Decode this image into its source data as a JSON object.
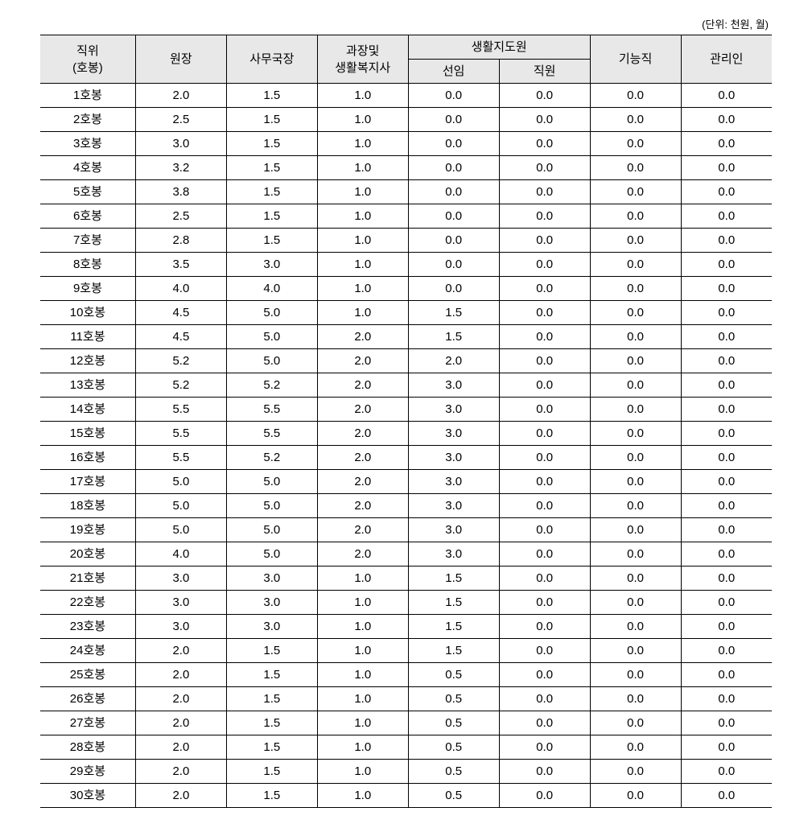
{
  "unit_label": "(단위: 천원, 월)",
  "table": {
    "type": "table",
    "header": {
      "col1_line1": "직위",
      "col1_line2": "(호봉)",
      "col2": "원장",
      "col3": "사무국장",
      "col4_line1": "과장및",
      "col4_line2": "생활복지사",
      "col5_group": "생활지도원",
      "col5a": "선임",
      "col5b": "직원",
      "col6": "기능직",
      "col7": "관리인"
    },
    "rows": [
      {
        "label": "1호봉",
        "c1": "2.0",
        "c2": "1.5",
        "c3": "1.0",
        "c4": "0.0",
        "c5": "0.0",
        "c6": "0.0",
        "c7": "0.0"
      },
      {
        "label": "2호봉",
        "c1": "2.5",
        "c2": "1.5",
        "c3": "1.0",
        "c4": "0.0",
        "c5": "0.0",
        "c6": "0.0",
        "c7": "0.0"
      },
      {
        "label": "3호봉",
        "c1": "3.0",
        "c2": "1.5",
        "c3": "1.0",
        "c4": "0.0",
        "c5": "0.0",
        "c6": "0.0",
        "c7": "0.0"
      },
      {
        "label": "4호봉",
        "c1": "3.2",
        "c2": "1.5",
        "c3": "1.0",
        "c4": "0.0",
        "c5": "0.0",
        "c6": "0.0",
        "c7": "0.0"
      },
      {
        "label": "5호봉",
        "c1": "3.8",
        "c2": "1.5",
        "c3": "1.0",
        "c4": "0.0",
        "c5": "0.0",
        "c6": "0.0",
        "c7": "0.0"
      },
      {
        "label": "6호봉",
        "c1": "2.5",
        "c2": "1.5",
        "c3": "1.0",
        "c4": "0.0",
        "c5": "0.0",
        "c6": "0.0",
        "c7": "0.0"
      },
      {
        "label": "7호봉",
        "c1": "2.8",
        "c2": "1.5",
        "c3": "1.0",
        "c4": "0.0",
        "c5": "0.0",
        "c6": "0.0",
        "c7": "0.0"
      },
      {
        "label": "8호봉",
        "c1": "3.5",
        "c2": "3.0",
        "c3": "1.0",
        "c4": "0.0",
        "c5": "0.0",
        "c6": "0.0",
        "c7": "0.0"
      },
      {
        "label": "9호봉",
        "c1": "4.0",
        "c2": "4.0",
        "c3": "1.0",
        "c4": "0.0",
        "c5": "0.0",
        "c6": "0.0",
        "c7": "0.0"
      },
      {
        "label": "10호봉",
        "c1": "4.5",
        "c2": "5.0",
        "c3": "1.0",
        "c4": "1.5",
        "c5": "0.0",
        "c6": "0.0",
        "c7": "0.0"
      },
      {
        "label": "11호봉",
        "c1": "4.5",
        "c2": "5.0",
        "c3": "2.0",
        "c4": "1.5",
        "c5": "0.0",
        "c6": "0.0",
        "c7": "0.0"
      },
      {
        "label": "12호봉",
        "c1": "5.2",
        "c2": "5.0",
        "c3": "2.0",
        "c4": "2.0",
        "c5": "0.0",
        "c6": "0.0",
        "c7": "0.0"
      },
      {
        "label": "13호봉",
        "c1": "5.2",
        "c2": "5.2",
        "c3": "2.0",
        "c4": "3.0",
        "c5": "0.0",
        "c6": "0.0",
        "c7": "0.0"
      },
      {
        "label": "14호봉",
        "c1": "5.5",
        "c2": "5.5",
        "c3": "2.0",
        "c4": "3.0",
        "c5": "0.0",
        "c6": "0.0",
        "c7": "0.0"
      },
      {
        "label": "15호봉",
        "c1": "5.5",
        "c2": "5.5",
        "c3": "2.0",
        "c4": "3.0",
        "c5": "0.0",
        "c6": "0.0",
        "c7": "0.0"
      },
      {
        "label": "16호봉",
        "c1": "5.5",
        "c2": "5.2",
        "c3": "2.0",
        "c4": "3.0",
        "c5": "0.0",
        "c6": "0.0",
        "c7": "0.0"
      },
      {
        "label": "17호봉",
        "c1": "5.0",
        "c2": "5.0",
        "c3": "2.0",
        "c4": "3.0",
        "c5": "0.0",
        "c6": "0.0",
        "c7": "0.0"
      },
      {
        "label": "18호봉",
        "c1": "5.0",
        "c2": "5.0",
        "c3": "2.0",
        "c4": "3.0",
        "c5": "0.0",
        "c6": "0.0",
        "c7": "0.0"
      },
      {
        "label": "19호봉",
        "c1": "5.0",
        "c2": "5.0",
        "c3": "2.0",
        "c4": "3.0",
        "c5": "0.0",
        "c6": "0.0",
        "c7": "0.0"
      },
      {
        "label": "20호봉",
        "c1": "4.0",
        "c2": "5.0",
        "c3": "2.0",
        "c4": "3.0",
        "c5": "0.0",
        "c6": "0.0",
        "c7": "0.0"
      },
      {
        "label": "21호봉",
        "c1": "3.0",
        "c2": "3.0",
        "c3": "1.0",
        "c4": "1.5",
        "c5": "0.0",
        "c6": "0.0",
        "c7": "0.0"
      },
      {
        "label": "22호봉",
        "c1": "3.0",
        "c2": "3.0",
        "c3": "1.0",
        "c4": "1.5",
        "c5": "0.0",
        "c6": "0.0",
        "c7": "0.0"
      },
      {
        "label": "23호봉",
        "c1": "3.0",
        "c2": "3.0",
        "c3": "1.0",
        "c4": "1.5",
        "c5": "0.0",
        "c6": "0.0",
        "c7": "0.0"
      },
      {
        "label": "24호봉",
        "c1": "2.0",
        "c2": "1.5",
        "c3": "1.0",
        "c4": "1.5",
        "c5": "0.0",
        "c6": "0.0",
        "c7": "0.0"
      },
      {
        "label": "25호봉",
        "c1": "2.0",
        "c2": "1.5",
        "c3": "1.0",
        "c4": "0.5",
        "c5": "0.0",
        "c6": "0.0",
        "c7": "0.0"
      },
      {
        "label": "26호봉",
        "c1": "2.0",
        "c2": "1.5",
        "c3": "1.0",
        "c4": "0.5",
        "c5": "0.0",
        "c6": "0.0",
        "c7": "0.0"
      },
      {
        "label": "27호봉",
        "c1": "2.0",
        "c2": "1.5",
        "c3": "1.0",
        "c4": "0.5",
        "c5": "0.0",
        "c6": "0.0",
        "c7": "0.0"
      },
      {
        "label": "28호봉",
        "c1": "2.0",
        "c2": "1.5",
        "c3": "1.0",
        "c4": "0.5",
        "c5": "0.0",
        "c6": "0.0",
        "c7": "0.0"
      },
      {
        "label": "29호봉",
        "c1": "2.0",
        "c2": "1.5",
        "c3": "1.0",
        "c4": "0.5",
        "c5": "0.0",
        "c6": "0.0",
        "c7": "0.0"
      },
      {
        "label": "30호봉",
        "c1": "2.0",
        "c2": "1.5",
        "c3": "1.0",
        "c4": "0.5",
        "c5": "0.0",
        "c6": "0.0",
        "c7": "0.0"
      }
    ],
    "background_color": "#ffffff",
    "header_bg_color": "#e8e8e8",
    "border_color": "#000000",
    "text_color": "#000000",
    "font_size": 15
  }
}
